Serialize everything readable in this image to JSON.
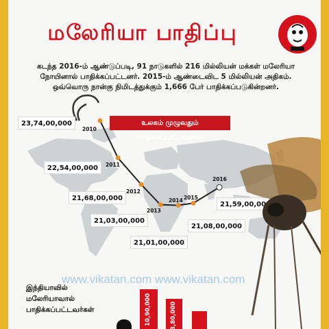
{
  "title": "மலேரியா பாதிப்பு",
  "intro": {
    "line1": "கடந்த 2016-ம் ஆண்டுப்படி, 91 நாடுகளில் 216 மில்லியன் மக்கள் மலேரியா",
    "line2": "நோயினால் பாதிக்கப்பட்டனர். 2015-ம் ஆண்டைவிட 5 மில்லியன் அதிகம்.",
    "line3": "ஒவ்வொரு நான்கு நிமிடத்துக்கும் 1,666 பேர் பாதிக்கப்படுகின்றனர்."
  },
  "world_label": "உலகம் முழுவதும் பாதிக்கப்பட்டவர்கள்",
  "chart_data": {
    "type": "line",
    "title": "உலகம் முழுவதும் பாதிக்கப்பட்டவர்கள்",
    "x": [
      "2010",
      "2011",
      "2012",
      "2013",
      "2014",
      "2015",
      "2016"
    ],
    "series": [
      {
        "values_label": [
          "23,74,00,000",
          "22,54,00,000",
          "21,68,00,000",
          "21,03,00,000",
          "21,01,00,000",
          "21,08,00,000",
          "21,59,00,000"
        ],
        "values": [
          237400000,
          225400000,
          216800000,
          210300000,
          210100000,
          210800000,
          215900000
        ]
      }
    ]
  },
  "india_label": {
    "line1": "இந்தியாவில்",
    "line2": "மலேரியாவால்",
    "line3": "பாதிக்கப்பட்டவர்கள்"
  },
  "india_bars": [
    "10,90,000",
    "8,80,000"
  ],
  "watermark": "www.vikatan.com www.vikatan.com",
  "colors": {
    "red": "#d5111c",
    "frame": "#e9b62a",
    "map": "#cfd2d4",
    "line": "#222222",
    "marker": "#e8902a"
  }
}
